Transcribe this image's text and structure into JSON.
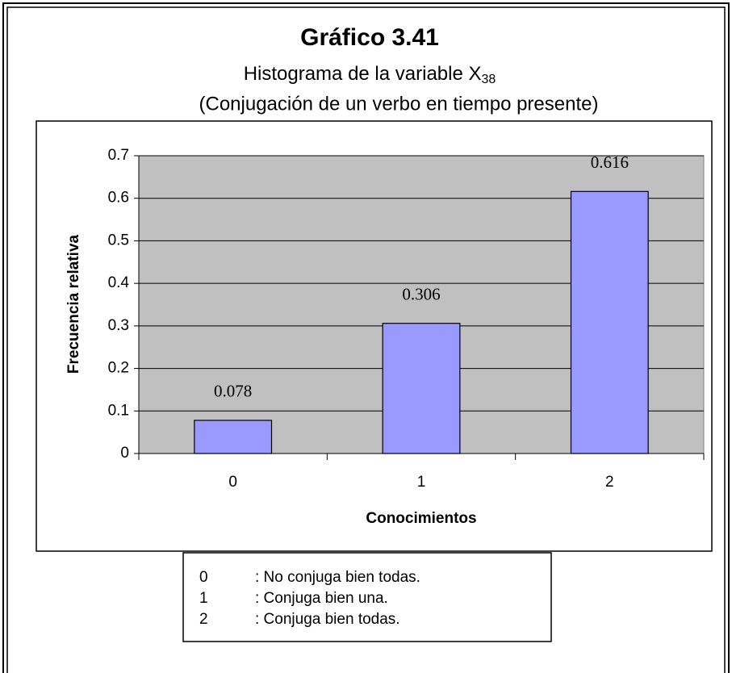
{
  "chart_data": {
    "type": "bar",
    "title": "Gráfico 3.41",
    "subtitle": {
      "text": "Histograma de la variable X",
      "subscript": "38"
    },
    "subtitle2": "(Conjugación de un verbo en tiempo presente)",
    "x_label": "Conocimientos",
    "y_label": "Frecuencia relativa",
    "categories": [
      "0",
      "1",
      "2"
    ],
    "values": [
      0.078,
      0.306,
      0.616
    ],
    "color": "#9999ff",
    "plot_background": "#c0c0c0",
    "ylim": [
      0,
      0.7
    ],
    "yticks": [
      0,
      0.1,
      0.2,
      0.3,
      0.4,
      0.5,
      0.6,
      0.7
    ],
    "grid": true,
    "legend": [
      {
        "code": "0",
        "text": ": No conjuga bien todas."
      },
      {
        "code": "1",
        "text": ": Conjuga bien una."
      },
      {
        "code": "2",
        "text": ": Conjuga bien todas."
      }
    ]
  }
}
